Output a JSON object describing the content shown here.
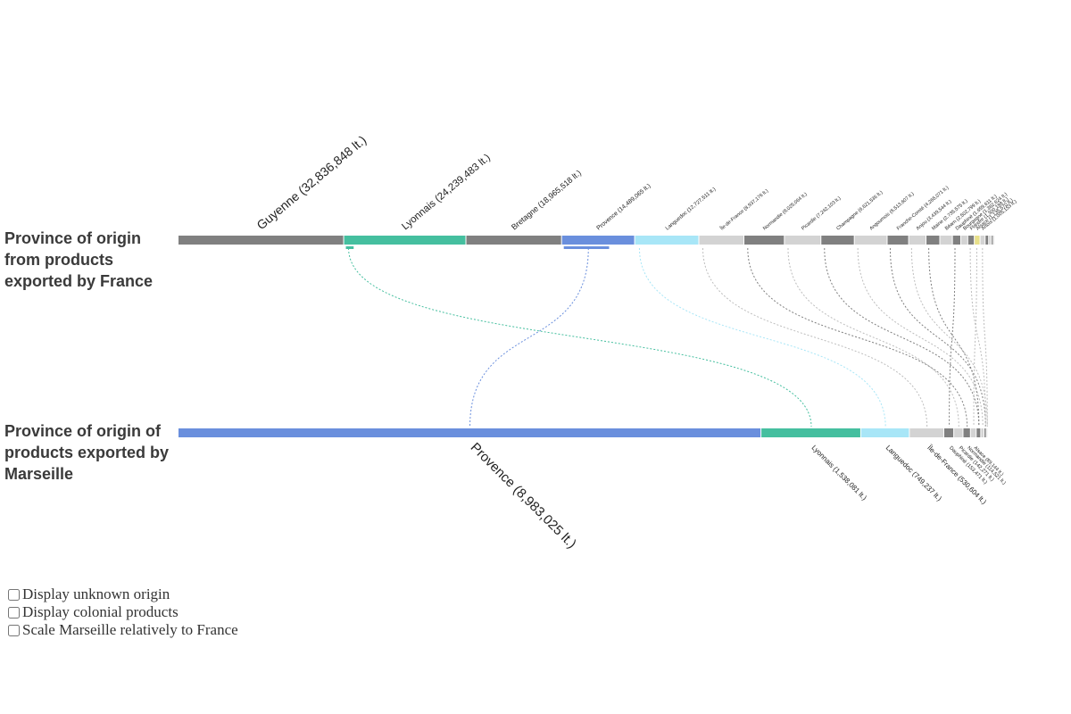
{
  "titles": {
    "france": "Province of origin from products exported by France",
    "marseille": "Province of origin of products exported by Marseille"
  },
  "controls": [
    {
      "label": "Display unknown origin",
      "checked": false
    },
    {
      "label": "Display colonial products",
      "checked": false
    },
    {
      "label": "Scale Marseille relatively to France",
      "checked": false
    }
  ],
  "colors": {
    "Guyenne": "#808080",
    "Lyonnais": "#45bf9f",
    "Bretagne": "#808080",
    "Provence": "#6a8fdd",
    "Languedoc": "#a8e6f7",
    "light_gray": "#d3d3d3",
    "dark_gray": "#808080",
    "small_yellow": "#e8e08a"
  },
  "chart_data": {
    "type": "alluvial",
    "unit": "lt.",
    "series": [
      {
        "name": "France",
        "segments": [
          {
            "label": "Guyenne (32,836,848 lt.)",
            "value": 32836848,
            "color": "#808080"
          },
          {
            "label": "Lyonnais (24,239,483 lt.)",
            "value": 24239483,
            "color": "#45bf9f"
          },
          {
            "label": "Bretagne (18,965,518 lt.)",
            "value": 18965518,
            "color": "#808080"
          },
          {
            "label": "Provence (14,489,065 lt.)",
            "value": 14489065,
            "color": "#6a8fdd"
          },
          {
            "label": "Languedoc (12,727,511 lt.)",
            "value": 12727511,
            "color": "#a8e6f7"
          },
          {
            "label": "Île-de-France (8,937,176 lt.)",
            "value": 8937176,
            "color": "#d3d3d3"
          },
          {
            "label": "Normandie (8,025,064 lt.)",
            "value": 8025064,
            "color": "#808080"
          },
          {
            "label": "Picardie (7,242,103 lt.)",
            "value": 7242103,
            "color": "#d3d3d3"
          },
          {
            "label": "Champagne (6,621,536 lt.)",
            "value": 6621536,
            "color": "#808080"
          },
          {
            "label": "Angoumois (6,513,607 lt.)",
            "value": 6513607,
            "color": "#d3d3d3"
          },
          {
            "label": "Franche-Comté (4,265,071 lt.)",
            "value": 4265071,
            "color": "#808080"
          },
          {
            "label": "Anjou (3,439,544 lt.)",
            "value": 3439544,
            "color": "#d3d3d3"
          },
          {
            "label": "Maine (2,735,575 lt.)",
            "value": 2735575,
            "color": "#808080"
          },
          {
            "label": "Béarn (2,502,799 lt.)",
            "value": 2502799,
            "color": "#d3d3d3"
          },
          {
            "label": "Dauphiné (1,659,611 lt.)",
            "value": 1659611,
            "color": "#808080"
          },
          {
            "label": "Bourgogne (1,382,624 lt.)",
            "value": 1382624,
            "color": "#d3d3d3"
          },
          {
            "label": "Flandre (1,300,188 lt.)",
            "value": 1300188,
            "color": "#808080"
          },
          {
            "label": "Alsace (1,135,570 lt.)",
            "value": 1135570,
            "color": "#e8e08a"
          },
          {
            "label": "Artois (1,005,153 lt.)",
            "value": 1005153,
            "color": "#d3d3d3"
          },
          {
            "label": "",
            "value": 700000,
            "color": "#808080"
          },
          {
            "label": "",
            "value": 500000,
            "color": "#d3d3d3"
          },
          {
            "label": "",
            "value": 400000,
            "color": "#808080"
          },
          {
            "label": "",
            "value": 300000,
            "color": "#d3d3d3"
          }
        ]
      },
      {
        "name": "Marseille",
        "segments": [
          {
            "label": "Provence (8,983,025 lt.)",
            "value": 8983025,
            "color": "#6a8fdd"
          },
          {
            "label": "Lyonnais (1,538,081 lt.)",
            "value": 1538081,
            "color": "#45bf9f"
          },
          {
            "label": "Languedoc (749,237 lt.)",
            "value": 749237,
            "color": "#a8e6f7"
          },
          {
            "label": "Île-de-France (530,604 lt.)",
            "value": 530604,
            "color": "#d3d3d3"
          },
          {
            "label": "Dauphiné (153,471 lt.)",
            "value": 153471,
            "color": "#808080"
          },
          {
            "label": "Picardie (142,271 lt.)",
            "value": 142271,
            "color": "#d3d3d3"
          },
          {
            "label": "Normandie (114,521 lt.)",
            "value": 114521,
            "color": "#808080"
          },
          {
            "label": "Alsace (89,144 lt.)",
            "value": 89144,
            "color": "#d3d3d3"
          },
          {
            "label": "",
            "value": 70000,
            "color": "#808080"
          },
          {
            "label": "",
            "value": 50000,
            "color": "#d3d3d3"
          },
          {
            "label": "",
            "value": 35000,
            "color": "#808080"
          },
          {
            "label": "",
            "value": 20000,
            "color": "#d3d3d3"
          }
        ]
      }
    ],
    "flows": [
      {
        "from": 1,
        "to": 1,
        "color": "#45bf9f"
      },
      {
        "from": 3,
        "to": 0,
        "color": "#6a8fdd"
      },
      {
        "from": 4,
        "to": 2,
        "color": "#a8e6f7"
      },
      {
        "from": 5,
        "to": 3,
        "color": "#bdbdbd"
      },
      {
        "from": 6,
        "to": 6,
        "color": "#808080"
      },
      {
        "from": 7,
        "to": 5,
        "color": "#bdbdbd"
      },
      {
        "from": 8,
        "to": 8,
        "color": "#808080"
      },
      {
        "from": 9,
        "to": 9,
        "color": "#bdbdbd"
      },
      {
        "from": 10,
        "to": 10,
        "color": "#808080"
      },
      {
        "from": 11,
        "to": 11,
        "color": "#bdbdbd"
      },
      {
        "from": 12,
        "to": 8,
        "color": "#808080"
      },
      {
        "from": 14,
        "to": 4,
        "color": "#808080"
      },
      {
        "from": 16,
        "to": 10,
        "color": "#bdbdbd"
      },
      {
        "from": 17,
        "to": 7,
        "color": "#bdbdbd"
      },
      {
        "from": 18,
        "to": 11,
        "color": "#bdbdbd"
      }
    ]
  }
}
